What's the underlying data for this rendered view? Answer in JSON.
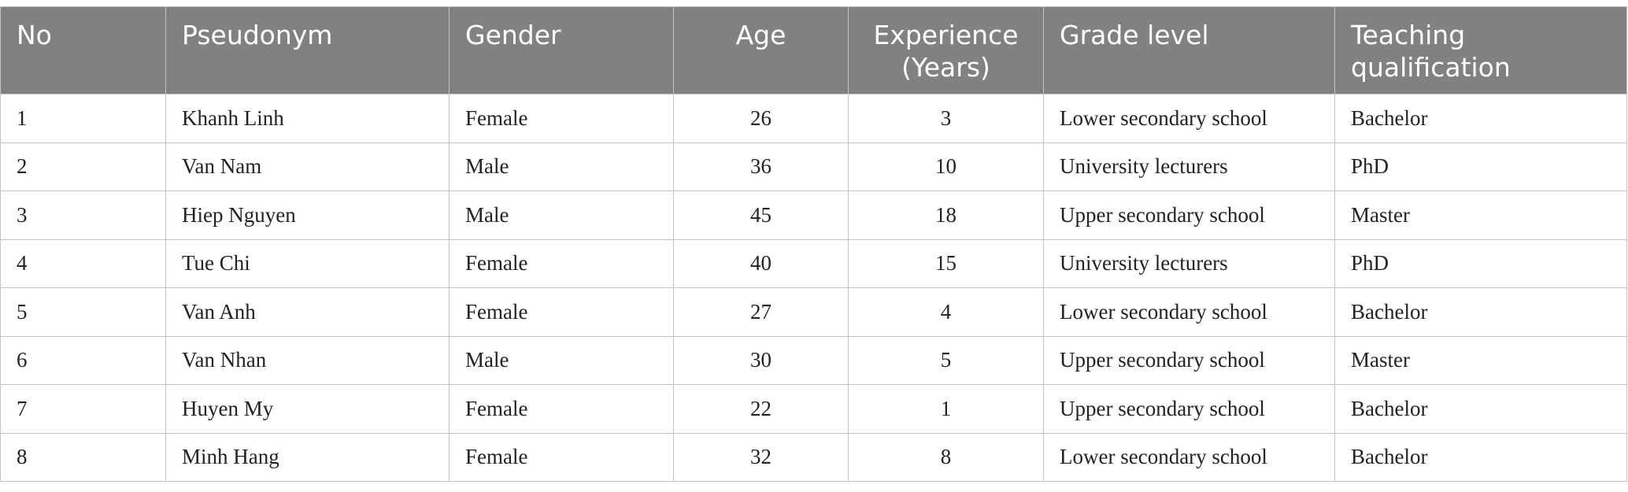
{
  "table": {
    "headers": {
      "no": "No",
      "pseudonym": "Pseudonym",
      "gender": "Gender",
      "age": "Age",
      "experience_line1": "Experience",
      "experience_line2": "(Years)",
      "grade_level": "Grade level",
      "qualification_line1": "Teaching",
      "qualification_line2": "qualification"
    },
    "rows": [
      {
        "no": "1",
        "pseudonym": "Khanh Linh",
        "gender": "Female",
        "age": "26",
        "experience": "3",
        "grade_level": "Lower secondary school",
        "qualification": "Bachelor"
      },
      {
        "no": "2",
        "pseudonym": "Van Nam",
        "gender": "Male",
        "age": "36",
        "experience": "10",
        "grade_level": "University lecturers",
        "qualification": "PhD"
      },
      {
        "no": "3",
        "pseudonym": "Hiep Nguyen",
        "gender": "Male",
        "age": "45",
        "experience": "18",
        "grade_level": "Upper secondary school",
        "qualification": "Master"
      },
      {
        "no": "4",
        "pseudonym": "Tue Chi",
        "gender": "Female",
        "age": "40",
        "experience": "15",
        "grade_level": "University lecturers",
        "qualification": "PhD"
      },
      {
        "no": "5",
        "pseudonym": "Van Anh",
        "gender": "Female",
        "age": "27",
        "experience": "4",
        "grade_level": "Lower secondary school",
        "qualification": "Bachelor"
      },
      {
        "no": "6",
        "pseudonym": "Van Nhan",
        "gender": "Male",
        "age": "30",
        "experience": "5",
        "grade_level": "Upper secondary school",
        "qualification": "Master"
      },
      {
        "no": "7",
        "pseudonym": "Huyen My",
        "gender": "Female",
        "age": "22",
        "experience": "1",
        "grade_level": "Upper secondary school",
        "qualification": "Bachelor"
      },
      {
        "no": "8",
        "pseudonym": "Minh Hang",
        "gender": "Female",
        "age": "32",
        "experience": "8",
        "grade_level": "Lower secondary school",
        "qualification": "Bachelor"
      }
    ]
  },
  "colors": {
    "header_background": "#808280",
    "header_text": "#ffffff",
    "grid_line": "#c4c4c4",
    "body_text": "#222222"
  }
}
